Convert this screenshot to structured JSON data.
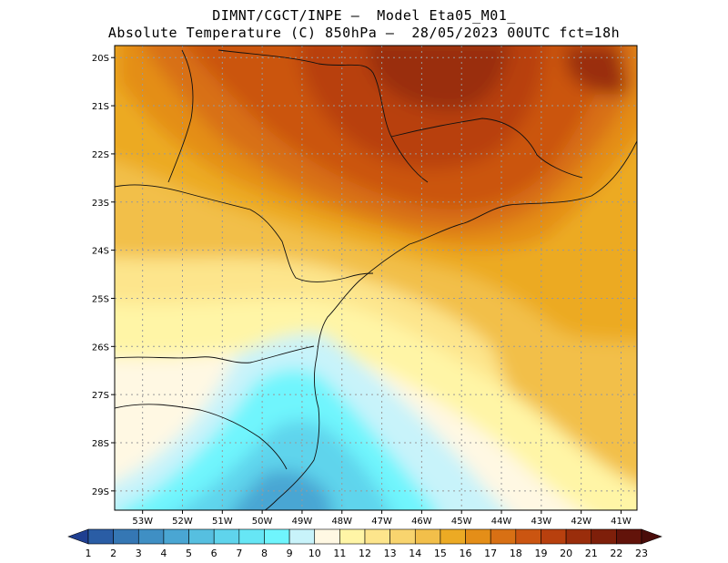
{
  "header": {
    "line1": "DIMNT/CGCT/INPE –  Model Eta05_M01_",
    "line2": "Absolute Temperature (C) 850hPa –  28/05/2023 00UTC fct=18h"
  },
  "map": {
    "lat_labels": [
      "20S",
      "21S",
      "22S",
      "23S",
      "24S",
      "25S",
      "26S",
      "27S",
      "28S",
      "29S"
    ],
    "lat_values": [
      -20,
      -21,
      -22,
      -23,
      -24,
      -25,
      -26,
      -27,
      -28,
      -29
    ],
    "lon_labels": [
      "53W",
      "52W",
      "51W",
      "50W",
      "49W",
      "48W",
      "47W",
      "46W",
      "45W",
      "44W",
      "43W",
      "42W",
      "41W"
    ],
    "lon_values": [
      -53,
      -52,
      -51,
      -50,
      -49,
      -48,
      -47,
      -46,
      -45,
      -44,
      -43,
      -42,
      -41
    ],
    "extent": {
      "lon_min": -53.7,
      "lon_max": -40.6,
      "lat_min": -29.4,
      "lat_max": -19.75
    }
  },
  "colorbar": {
    "labels": [
      "1",
      "2",
      "3",
      "4",
      "5",
      "6",
      "7",
      "8",
      "9",
      "10",
      "11",
      "12",
      "13",
      "14",
      "15",
      "16",
      "17",
      "18",
      "19",
      "20",
      "21",
      "22",
      "23"
    ],
    "colors": [
      "#1f3f91",
      "#2a5da5",
      "#3577b4",
      "#3f8fc4",
      "#4aa6d3",
      "#56bfe0",
      "#5fd4ec",
      "#66e6f5",
      "#6ff5fd",
      "#c8f3fa",
      "#fff8e3",
      "#fff5a6",
      "#fde58c",
      "#f8d46e",
      "#f2bf4a",
      "#ecaa24",
      "#e48e18",
      "#d87014",
      "#cb5511",
      "#b8400e",
      "#9a2d0b",
      "#7e1f0a",
      "#62130a",
      "#4a0c0a"
    ]
  }
}
